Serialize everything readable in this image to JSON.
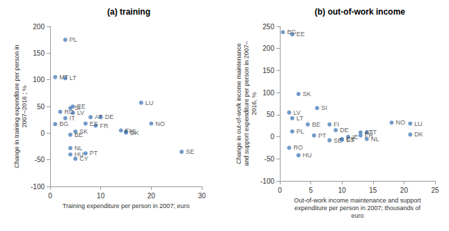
{
  "chart_data": [
    {
      "type": "scatter",
      "title": "(a) training",
      "x_label": "Training expenditure per person in 2007; euro",
      "y_label": "Change in training expenditure per person in\n2007–2016 ; %",
      "labels": [
        "PL",
        "MT",
        "LT",
        "RO",
        "SI",
        "EE",
        "LV",
        "IT",
        "BG",
        "SK",
        "BE",
        "DE",
        "AT",
        "ES",
        "FR",
        "LU",
        "NO",
        "FI",
        "IE",
        "DK",
        "SE",
        "NL",
        "HU",
        "CY",
        "PT"
      ],
      "x": [
        3,
        1,
        3,
        2,
        4,
        4.5,
        4.5,
        3,
        1,
        5,
        4,
        10,
        8,
        7,
        9,
        18,
        20,
        14,
        15,
        15,
        26,
        4,
        4,
        5,
        7
      ],
      "values": [
        175,
        105,
        103,
        40,
        47,
        50,
        38,
        28,
        17,
        3,
        -3,
        30,
        30,
        18,
        14,
        57,
        18,
        5,
        3,
        1,
        -35,
        -28,
        -40,
        -48,
        -38
      ],
      "color": "#4F81BD",
      "xlim": [
        0,
        30
      ],
      "xticks": [
        0,
        10,
        20,
        30
      ],
      "ylim": [
        -100,
        200
      ],
      "yticks": [
        -100,
        -50,
        0,
        50,
        100,
        150,
        200
      ],
      "grid": false
    },
    {
      "type": "scatter",
      "title": "(b) out-of-work income",
      "x_label": "Out-of-work income maintenance and support\nexpenditure per person in 2007; thousands of\neuro",
      "y_label": "Change in out-of-work income maintenance\nand support expenditure per person in 2007–\n2016, %",
      "labels": [
        "BG",
        "EE",
        "SK",
        "LV",
        "LT",
        "PL",
        "SI",
        "BE",
        "FI",
        "DE",
        "PT",
        "SE",
        "CY",
        "IE",
        "ES",
        "AT",
        "IT",
        "FR",
        "NL",
        "NO",
        "LU",
        "DK",
        "RO",
        "HU"
      ],
      "x": [
        0.5,
        2,
        3,
        1.5,
        2,
        2,
        6,
        4.5,
        8,
        9,
        5.5,
        8,
        10,
        11,
        10,
        13,
        14,
        13,
        14,
        18,
        21,
        21,
        1.5,
        3
      ],
      "values": [
        237,
        232,
        97,
        55,
        42,
        12,
        65,
        28,
        28,
        15,
        3,
        -8,
        -5,
        0,
        -7,
        10,
        10,
        3,
        -5,
        32,
        30,
        5,
        -25,
        -42
      ],
      "color": "#4F81BD",
      "xlim": [
        0,
        25
      ],
      "xticks": [
        0,
        5,
        10,
        15,
        20,
        25
      ],
      "ylim": [
        -100,
        250
      ],
      "yticks": [
        -100,
        -50,
        0,
        50,
        100,
        150,
        200,
        250
      ],
      "grid": false
    }
  ]
}
